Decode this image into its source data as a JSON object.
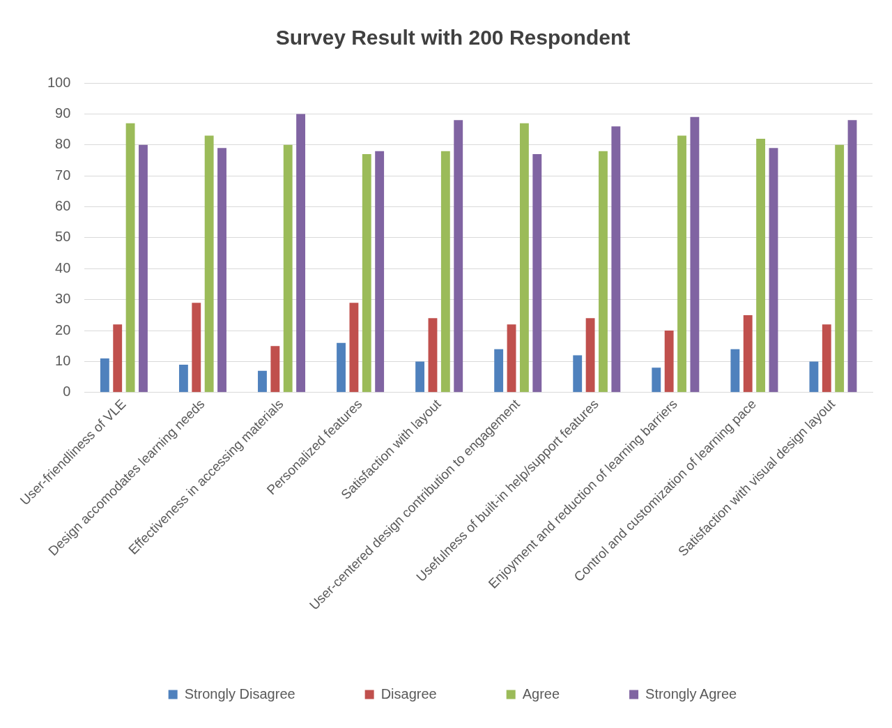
{
  "chart_data": {
    "type": "bar",
    "title": "Survey Result with 200 Respondent",
    "categories": [
      "User-friendliness of VLE",
      "Design accomodates learning needs",
      "Effectiveness in accessing materials",
      "Personalized features",
      "Satisfaction with layout",
      "User-centered design contribution to engagement",
      "Usefulness of built-in help/support features",
      "Enjoyment and reduction of learning barriers",
      "Control and customization of learning pace",
      "Satisfaction with visual design layout"
    ],
    "series": [
      {
        "name": "Strongly Disagree",
        "color": "#4f81bd",
        "values": [
          11,
          9,
          7,
          16,
          10,
          14,
          12,
          8,
          14,
          10
        ]
      },
      {
        "name": "Disagree",
        "color": "#c0504d",
        "values": [
          22,
          29,
          15,
          29,
          24,
          22,
          24,
          20,
          25,
          22
        ]
      },
      {
        "name": "Agree",
        "color": "#9bbb59",
        "values": [
          87,
          83,
          80,
          77,
          78,
          87,
          78,
          83,
          82,
          80
        ]
      },
      {
        "name": "Strongly Agree",
        "color": "#8064a2",
        "values": [
          80,
          79,
          90,
          78,
          88,
          77,
          86,
          89,
          79,
          88
        ]
      }
    ],
    "ylim": [
      0,
      100
    ],
    "yticks": [
      0,
      10,
      20,
      30,
      40,
      50,
      60,
      70,
      80,
      90,
      100
    ],
    "grid": "y",
    "legend": "bottom"
  }
}
